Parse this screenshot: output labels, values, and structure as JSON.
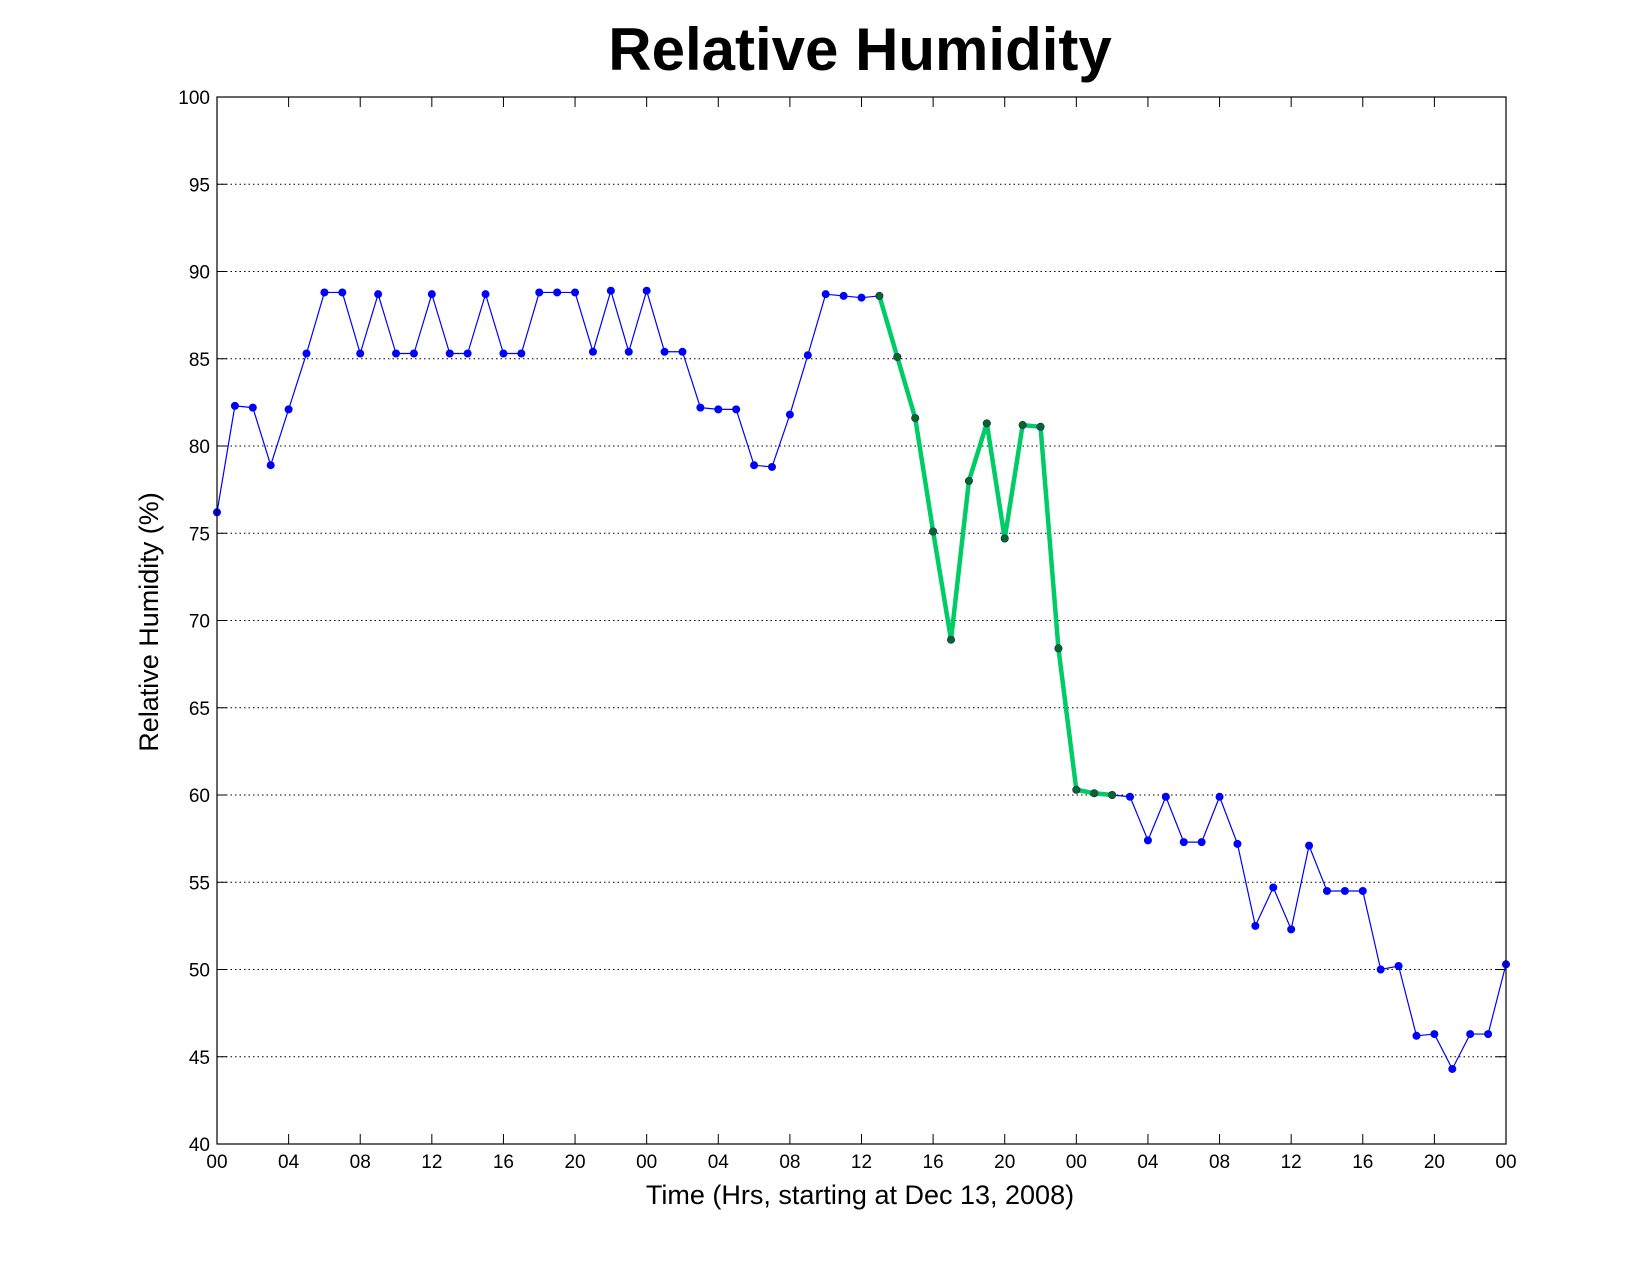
{
  "chart_data": {
    "type": "line",
    "title": "Relative Humidity",
    "xlabel": "Time (Hrs, starting at Dec 13, 2008)",
    "ylabel": "Relative Humidity (%)",
    "xlim": [
      0,
      72
    ],
    "ylim": [
      40,
      100
    ],
    "yticks": [
      40,
      45,
      50,
      55,
      60,
      65,
      70,
      75,
      80,
      85,
      90,
      95,
      100
    ],
    "xticks": [
      {
        "x": 0,
        "label": "00"
      },
      {
        "x": 4,
        "label": "04"
      },
      {
        "x": 8,
        "label": "08"
      },
      {
        "x": 12,
        "label": "12"
      },
      {
        "x": 16,
        "label": "16"
      },
      {
        "x": 20,
        "label": "20"
      },
      {
        "x": 24,
        "label": "00"
      },
      {
        "x": 28,
        "label": "04"
      },
      {
        "x": 32,
        "label": "08"
      },
      {
        "x": 36,
        "label": "12"
      },
      {
        "x": 40,
        "label": "16"
      },
      {
        "x": 44,
        "label": "20"
      },
      {
        "x": 48,
        "label": "00"
      },
      {
        "x": 52,
        "label": "04"
      },
      {
        "x": 56,
        "label": "08"
      },
      {
        "x": 60,
        "label": "12"
      },
      {
        "x": 64,
        "label": "16"
      },
      {
        "x": 68,
        "label": "20"
      },
      {
        "x": 72,
        "label": "00"
      }
    ],
    "grid": true,
    "colors": {
      "main": "#0000ff",
      "highlight": "#00cc66",
      "highlight_marker": "#0b6b0b"
    },
    "series": [
      {
        "style": "main",
        "x": [
          0,
          1,
          2,
          3,
          4,
          5,
          6,
          7,
          8,
          9,
          10,
          11,
          12,
          13,
          14,
          15,
          16,
          17,
          18,
          19,
          20,
          21,
          22,
          23,
          24,
          25,
          26,
          27,
          28,
          29,
          30,
          31,
          32,
          33,
          34,
          35,
          36,
          37,
          38,
          39,
          40,
          41,
          42,
          43,
          44,
          45,
          46,
          47,
          48,
          49,
          50,
          51,
          52,
          53,
          54,
          55,
          56,
          57,
          58,
          59,
          60,
          61,
          62,
          63,
          64,
          65,
          66,
          67,
          68,
          69,
          70,
          71,
          72
        ],
        "y": [
          76.2,
          82.3,
          82.2,
          78.9,
          82.1,
          85.3,
          88.8,
          88.8,
          85.3,
          88.7,
          85.3,
          85.3,
          88.7,
          85.3,
          85.3,
          88.7,
          85.3,
          85.3,
          88.8,
          88.8,
          88.8,
          85.4,
          88.9,
          85.4,
          88.9,
          85.4,
          85.4,
          82.2,
          82.1,
          82.1,
          78.9,
          78.8,
          81.8,
          85.2,
          88.7,
          88.6,
          88.5,
          88.6,
          85.1,
          81.6,
          75.1,
          68.9,
          78.0,
          81.3,
          74.7,
          81.2,
          81.1,
          68.4,
          60.3,
          60.1,
          60.0,
          59.9,
          57.4,
          59.9,
          57.3,
          57.3,
          59.9,
          57.2,
          52.5,
          54.7,
          52.3,
          57.1,
          54.5,
          54.5,
          54.5,
          50.0,
          50.2,
          46.2,
          46.3,
          44.3,
          46.3,
          46.3,
          50.3
        ]
      },
      {
        "style": "highlight",
        "x": [
          37,
          38,
          39,
          40,
          41,
          42,
          43,
          44,
          45,
          46,
          47,
          48,
          49,
          50
        ],
        "y": [
          88.6,
          85.1,
          81.6,
          75.1,
          68.9,
          78.0,
          81.3,
          74.7,
          81.2,
          81.1,
          68.4,
          60.3,
          60.1,
          60.0
        ]
      }
    ]
  }
}
